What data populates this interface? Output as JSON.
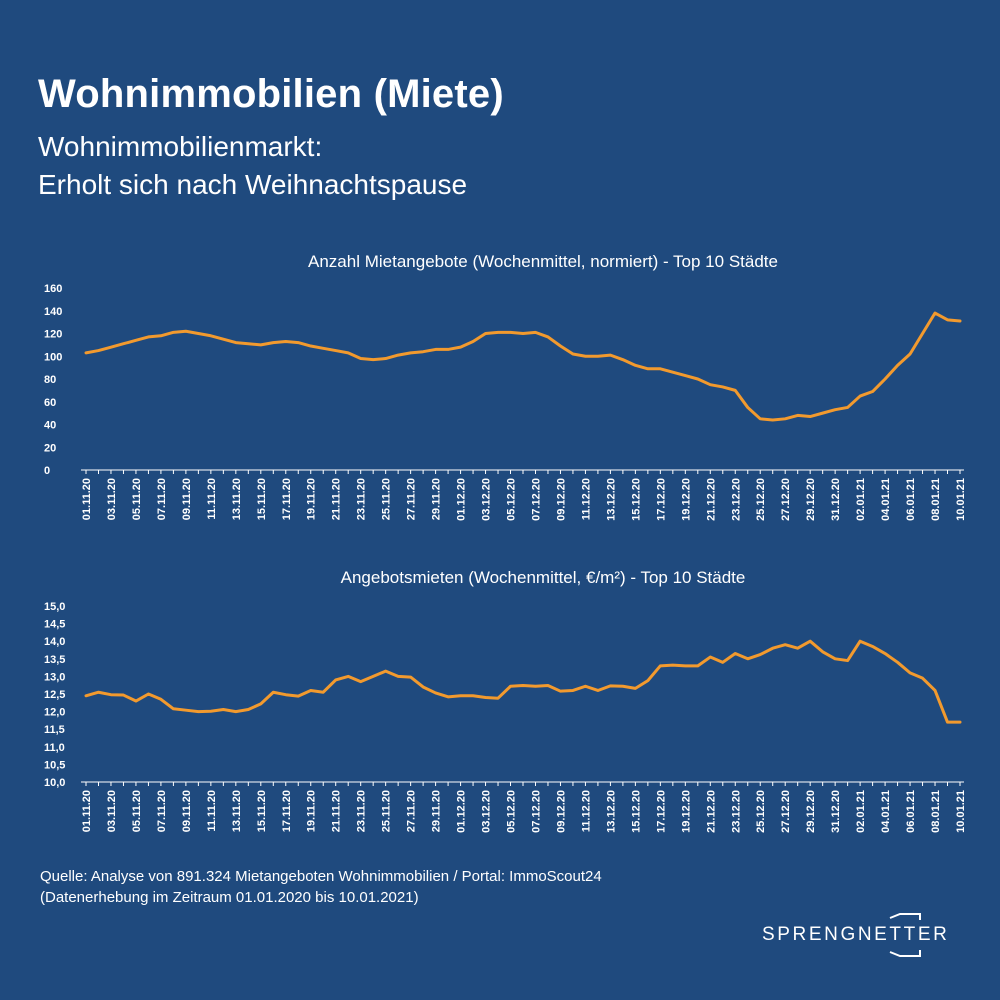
{
  "header": {
    "title": "Wohnimmobilien (Miete)",
    "subtitle_line1": "Wohnimmobilienmarkt:",
    "subtitle_line2": "Erholt sich nach Weihnachtspause"
  },
  "colors": {
    "background": "#1f4a7e",
    "line": "#f29a2e",
    "text": "#ffffff"
  },
  "chart_data": [
    {
      "type": "line",
      "title": "Anzahl Mietangebote (Wochenmittel, normiert) - Top 10 Städte",
      "xlabel": "",
      "ylabel": "",
      "ylim": [
        0,
        160
      ],
      "yticks": [
        "0",
        "20",
        "40",
        "60",
        "80",
        "100",
        "120",
        "140",
        "160"
      ],
      "grid": false,
      "x_tick_labels": [
        "01.11.20",
        "03.11.20",
        "05.11.20",
        "07.11.20",
        "09.11.20",
        "11.11.20",
        "13.11.20",
        "15.11.20",
        "17.11.20",
        "19.11.20",
        "21.11.20",
        "23.11.20",
        "25.11.20",
        "27.11.20",
        "29.11.20",
        "01.12.20",
        "03.12.20",
        "05.12.20",
        "07.12.20",
        "09.12.20",
        "11.12.20",
        "13.12.20",
        "15.12.20",
        "17.12.20",
        "19.12.20",
        "21.12.20",
        "23.12.20",
        "25.12.20",
        "27.12.20",
        "29.12.20",
        "31.12.20",
        "02.01.21",
        "04.01.21",
        "06.01.21",
        "08.01.21",
        "10.01.21"
      ],
      "series": [
        {
          "values": [
            103,
            105,
            108,
            111,
            114,
            117,
            118,
            121,
            122,
            120,
            118,
            115,
            112,
            111,
            110,
            112,
            113,
            112,
            109,
            107,
            105,
            103,
            98,
            97,
            98,
            101,
            103,
            104,
            106,
            106,
            108,
            113,
            120,
            121,
            121,
            120,
            121,
            117,
            109,
            102,
            100,
            100,
            101,
            97,
            92,
            89,
            89,
            86,
            83,
            80,
            75,
            73,
            70,
            55,
            45,
            44,
            45,
            48,
            47,
            50,
            53,
            55,
            65,
            69,
            80,
            92,
            102,
            120,
            138,
            132,
            131
          ]
        }
      ]
    },
    {
      "type": "line",
      "title": "Angebotsmieten (Wochenmittel, €/m²) - Top 10 Städte",
      "xlabel": "",
      "ylabel": "",
      "ylim": [
        10.0,
        15.0
      ],
      "yticks": [
        "10,0",
        "10,5",
        "11,0",
        "11,5",
        "12,0",
        "12,5",
        "13,0",
        "13,5",
        "14,0",
        "14,5",
        "15,0"
      ],
      "grid": false,
      "x_tick_labels": [
        "01.11.20",
        "03.11.20",
        "05.11.20",
        "07.11.20",
        "09.11.20",
        "11.11.20",
        "13.11.20",
        "15.11.20",
        "17.11.20",
        "19.11.20",
        "21.11.20",
        "23.11.20",
        "25.11.20",
        "27.11.20",
        "29.11.20",
        "01.12.20",
        "03.12.20",
        "05.12.20",
        "07.12.20",
        "09.12.20",
        "11.12.20",
        "13.12.20",
        "15.12.20",
        "17.12.20",
        "19.12.20",
        "21.12.20",
        "23.12.20",
        "25.12.20",
        "27.12.20",
        "29.12.20",
        "31.12.20",
        "02.01.21",
        "04.01.21",
        "06.01.21",
        "08.01.21",
        "10.01.21"
      ],
      "series": [
        {
          "values": [
            12.45,
            12.55,
            12.48,
            12.47,
            12.3,
            12.5,
            12.35,
            12.08,
            12.04,
            12.0,
            12.01,
            12.06,
            12.0,
            12.06,
            12.22,
            12.55,
            12.48,
            12.44,
            12.6,
            12.55,
            12.9,
            13.0,
            12.85,
            13.0,
            13.15,
            13.0,
            12.98,
            12.7,
            12.53,
            12.42,
            12.45,
            12.45,
            12.4,
            12.38,
            12.72,
            12.74,
            12.72,
            12.74,
            12.58,
            12.6,
            12.72,
            12.6,
            12.73,
            12.72,
            12.66,
            12.88,
            13.3,
            13.32,
            13.3,
            13.3,
            13.55,
            13.4,
            13.65,
            13.5,
            13.62,
            13.8,
            13.9,
            13.8,
            14.0,
            13.7,
            13.5,
            13.45,
            14.0,
            13.85,
            13.65,
            13.4,
            13.1,
            12.95,
            12.6,
            11.7,
            11.7
          ]
        }
      ]
    }
  ],
  "footer": {
    "source_line1": "Quelle: Analyse von 891.324  Mietangeboten Wohnimmobilien / Portal: ImmoScout24",
    "source_line2": "(Datenerhebung im Zeitraum 01.01.2020 bis  10.01.2021)"
  },
  "logo": {
    "text": "SPRENGNETTER"
  }
}
